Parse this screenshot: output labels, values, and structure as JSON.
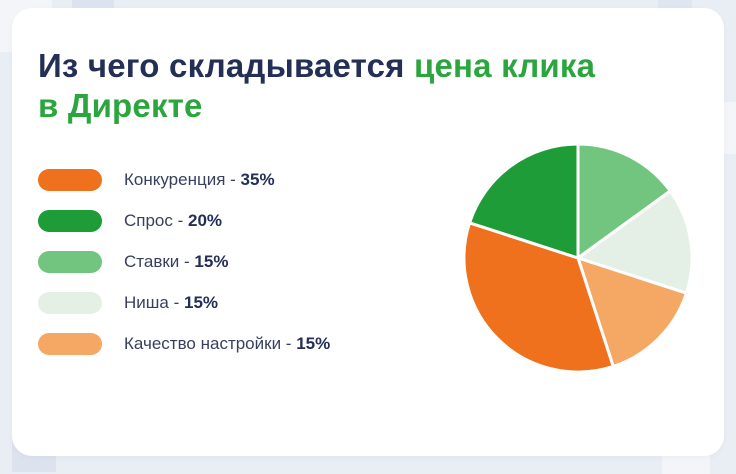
{
  "page": {
    "background": "#e9edf4"
  },
  "title": {
    "prefix": "Из чего складывается ",
    "accent_line1": "цена клика",
    "accent_line2": "в Директе",
    "text_color": "#232f55",
    "accent_color": "#2ba63e"
  },
  "chart_data": {
    "type": "pie",
    "title": "Из чего складывается цена клика в Директе",
    "unit": "%",
    "legend_position": "left",
    "start_angle_deg": -90,
    "direction": "clockwise",
    "separator": " - ",
    "slices": [
      {
        "label": "Конкуренция",
        "value": 35,
        "color": "#f0711d"
      },
      {
        "label": "Спрос",
        "value": 20,
        "color": "#1d9c38"
      },
      {
        "label": "Ставки",
        "value": 15,
        "color": "#72c57e"
      },
      {
        "label": "Ниша",
        "value": 15,
        "color": "#e4f0e6"
      },
      {
        "label": "Качество настройки",
        "value": 15,
        "color": "#f4a863"
      }
    ],
    "draw_order": [
      2,
      3,
      4,
      0,
      1
    ]
  }
}
